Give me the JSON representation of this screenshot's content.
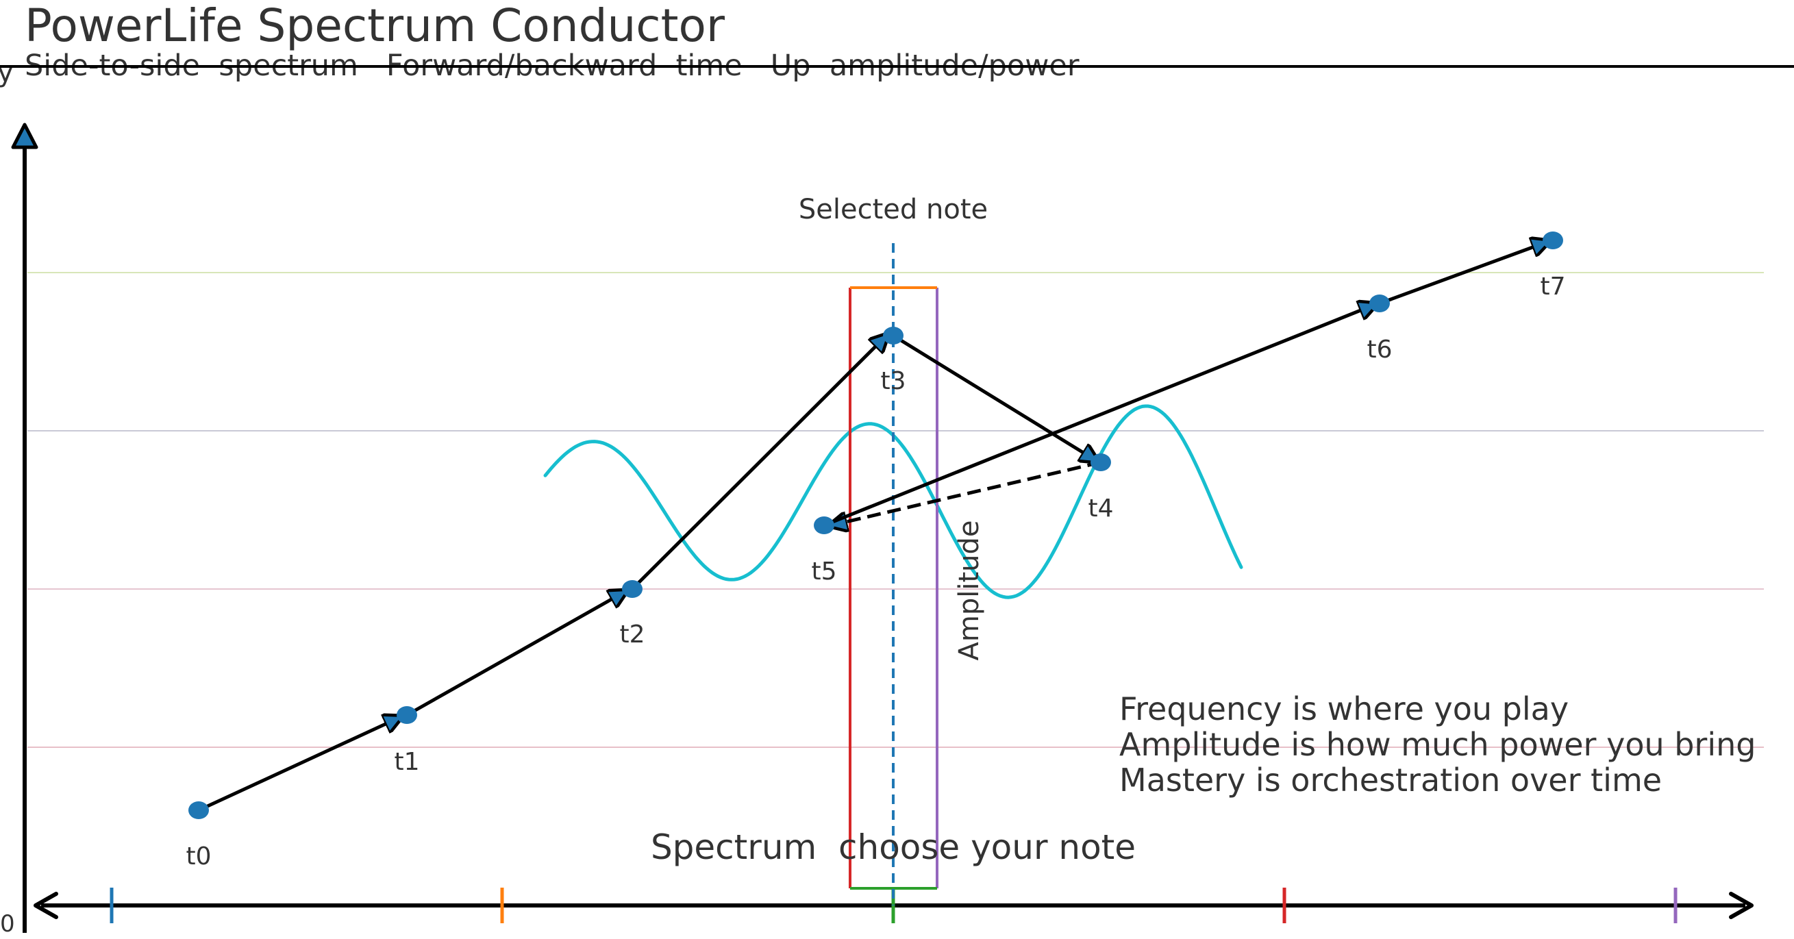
{
  "title": "PowerLife Spectrum Conductor",
  "subtitle": "Side-to-side  spectrum   Forward/backward  time   Up  amplitude/power",
  "corner_y": "y",
  "origin_label": "0",
  "selected_note_label": "Selected note",
  "amplitude_label": "Amplitude",
  "spectrum_label": "Spectrum  choose your note",
  "notes": [
    "Frequency is where you play",
    "Amplitude is how much power you bring",
    "Mastery is orchestration over time"
  ],
  "timeline_points": [
    {
      "label": "t0"
    },
    {
      "label": "t1"
    },
    {
      "label": "t2"
    },
    {
      "label": "t3"
    },
    {
      "label": "t4"
    },
    {
      "label": "t5"
    },
    {
      "label": "t6"
    },
    {
      "label": "t7"
    }
  ],
  "colors": {
    "axis": "#000000",
    "point": "#1f77b4",
    "wave": "#17becf",
    "selected_line": "#1f77b4",
    "band_left": "#d62728",
    "band_right": "#9467bd",
    "band_top": "#ff7f0e",
    "band_bottom": "#2ca02c",
    "spectrum_ticks": [
      "#1f77b4",
      "#ff7f0e",
      "#2ca02c",
      "#d62728",
      "#9467bd"
    ],
    "grid_lines": [
      "#d8e6b8",
      "#c9c9d6",
      "#e6c6d0",
      "#e8c0c8"
    ]
  }
}
